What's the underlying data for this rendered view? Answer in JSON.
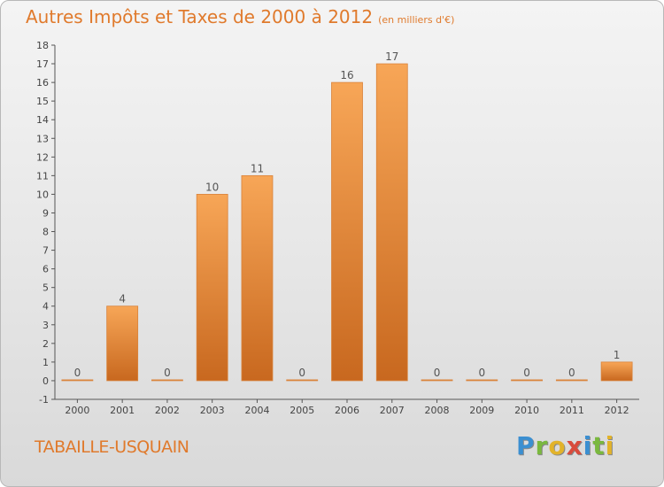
{
  "header": {
    "title": "Autres Impôts et Taxes de 2000 à 2012",
    "subtitle": "(en milliers d'€)"
  },
  "footer": {
    "commune": "TABAILLE-USQUAIN",
    "logo_letters": [
      "P",
      "r",
      "o",
      "x",
      "i",
      "t",
      "i"
    ],
    "logo_colors": [
      "#3b8fd1",
      "#7ab83e",
      "#e2b32a",
      "#d94b3c",
      "#3b8fd1",
      "#7ab83e",
      "#e2b32a"
    ]
  },
  "chart_data": {
    "type": "bar",
    "categories": [
      "2000",
      "2001",
      "2002",
      "2003",
      "2004",
      "2005",
      "2006",
      "2007",
      "2008",
      "2009",
      "2010",
      "2011",
      "2012"
    ],
    "values": [
      0,
      4,
      0,
      10,
      11,
      0,
      16,
      17,
      0,
      0,
      0,
      0,
      1
    ],
    "data_labels": [
      "0",
      "4",
      "0",
      "10",
      "11",
      "0",
      "16",
      "17",
      "0",
      "0",
      "0",
      "0",
      "1"
    ],
    "title": "Autres Impôts et Taxes de 2000 à 2012",
    "xlabel": "",
    "ylabel": "",
    "ylim": [
      -1,
      18
    ],
    "yticks": [
      -1,
      0,
      1,
      2,
      3,
      4,
      5,
      6,
      7,
      8,
      9,
      10,
      11,
      12,
      13,
      14,
      15,
      16,
      17,
      18
    ],
    "ytick_labels": [
      "-1",
      "0",
      "1",
      "2",
      "3",
      "4",
      "5",
      "6",
      "7",
      "8",
      "9",
      "10",
      "11",
      "12",
      "13",
      "14",
      "15",
      "16",
      "17",
      "18"
    ],
    "grid": false,
    "bar_color": "#f0943c"
  }
}
